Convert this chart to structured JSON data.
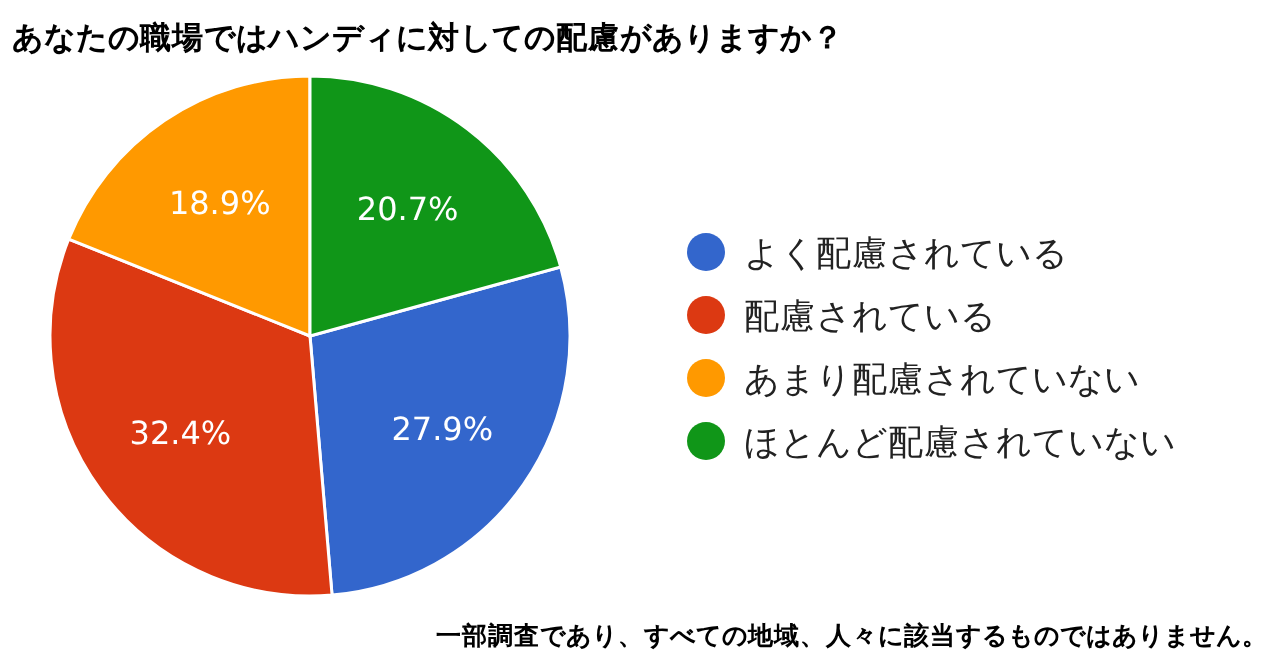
{
  "chart_data": {
    "type": "pie",
    "title": "あなたの職場ではハンディに対しての配慮がありますか？",
    "categories": [
      "よく配慮されている",
      "配慮されている",
      "あまり配慮されていない",
      "ほとんど配慮されていない"
    ],
    "values": [
      27.9,
      32.4,
      18.9,
      20.7
    ],
    "colors": [
      "#3366cc",
      "#dc3912",
      "#ff9900",
      "#109618"
    ],
    "value_labels": [
      "27.9%",
      "32.4%",
      "18.9%",
      "20.7%"
    ],
    "legend": "right",
    "annotations": [
      "一部調査であり、すべての地域、人々に該当するものではありません。"
    ]
  }
}
